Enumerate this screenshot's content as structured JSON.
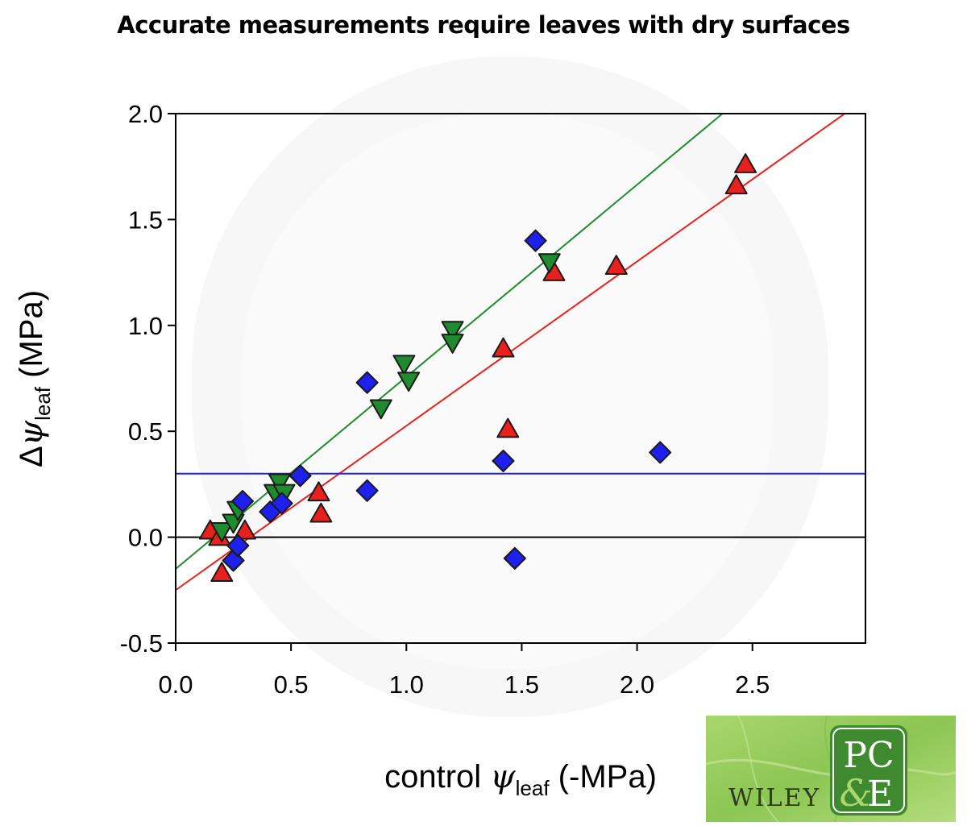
{
  "title": "Accurate measurements require leaves with dry surfaces",
  "chart_data": {
    "type": "scatter",
    "title": "Accurate measurements require leaves with dry surfaces",
    "xlabel": {
      "prefix": "control ",
      "symbol": "ψ",
      "subscript": "leaf",
      "suffix": " (-MPa)"
    },
    "ylabel": {
      "prefix": "Δ",
      "symbol": "ψ",
      "subscript": "leaf",
      "suffix": " (MPa)"
    },
    "xlim": [
      0.0,
      2.99
    ],
    "ylim": [
      -0.5,
      2.0
    ],
    "xticks": [
      0.0,
      0.5,
      1.0,
      1.5,
      2.0,
      2.5
    ],
    "xtick_labels": [
      "0.0",
      "0.5",
      "1.0",
      "1.5",
      "2.0",
      "2.5"
    ],
    "yticks": [
      -0.5,
      0.0,
      0.5,
      1.0,
      1.5,
      2.0
    ],
    "ytick_labels": [
      "-0.5",
      "0.0",
      "0.5",
      "1.0",
      "1.5",
      "2.0"
    ],
    "zero_line": {
      "y": 0.0,
      "color": "#000000"
    },
    "series": [
      {
        "marker": "triangle-up",
        "color": "#e8211f",
        "points": [
          {
            "x": 0.15,
            "y": 0.03
          },
          {
            "x": 0.19,
            "y": 0.0
          },
          {
            "x": 0.2,
            "y": -0.17
          },
          {
            "x": 0.3,
            "y": 0.03
          },
          {
            "x": 0.62,
            "y": 0.21
          },
          {
            "x": 0.63,
            "y": 0.11
          },
          {
            "x": 1.42,
            "y": 0.89
          },
          {
            "x": 1.44,
            "y": 0.51
          },
          {
            "x": 1.64,
            "y": 1.25
          },
          {
            "x": 1.91,
            "y": 1.28
          },
          {
            "x": 2.43,
            "y": 1.66
          },
          {
            "x": 2.47,
            "y": 1.76
          }
        ],
        "fit": {
          "x": [
            0.0,
            2.9
          ],
          "y": [
            -0.25,
            2.0
          ],
          "color": "#e8211f"
        }
      },
      {
        "marker": "triangle-down",
        "color": "#1f8a2e",
        "points": [
          {
            "x": 0.2,
            "y": 0.03
          },
          {
            "x": 0.25,
            "y": 0.07
          },
          {
            "x": 0.27,
            "y": 0.13
          },
          {
            "x": 0.43,
            "y": 0.21
          },
          {
            "x": 0.45,
            "y": 0.26
          },
          {
            "x": 0.47,
            "y": 0.21
          },
          {
            "x": 0.89,
            "y": 0.61
          },
          {
            "x": 0.99,
            "y": 0.82
          },
          {
            "x": 1.01,
            "y": 0.74
          },
          {
            "x": 1.2,
            "y": 0.98
          },
          {
            "x": 1.2,
            "y": 0.92
          },
          {
            "x": 1.62,
            "y": 1.3
          }
        ],
        "fit": {
          "x": [
            0.0,
            2.37
          ],
          "y": [
            -0.15,
            2.0
          ],
          "color": "#1f8a2e"
        }
      },
      {
        "marker": "diamond",
        "color": "#1f1fee",
        "points": [
          {
            "x": 0.25,
            "y": -0.11
          },
          {
            "x": 0.27,
            "y": -0.04
          },
          {
            "x": 0.29,
            "y": 0.17
          },
          {
            "x": 0.41,
            "y": 0.12
          },
          {
            "x": 0.46,
            "y": 0.16
          },
          {
            "x": 0.54,
            "y": 0.29
          },
          {
            "x": 0.83,
            "y": 0.22
          },
          {
            "x": 0.83,
            "y": 0.73
          },
          {
            "x": 1.42,
            "y": 0.36
          },
          {
            "x": 1.47,
            "y": -0.1
          },
          {
            "x": 1.56,
            "y": 1.4
          },
          {
            "x": 2.1,
            "y": 0.4
          }
        ],
        "fit": {
          "x": [
            0.0,
            2.99
          ],
          "y": [
            0.3,
            0.3
          ],
          "color": "#1f1fee"
        }
      }
    ]
  },
  "logo": {
    "publisher": "WILEY",
    "journal_mark": "PC&E",
    "bg_color": "#9ccf63"
  }
}
